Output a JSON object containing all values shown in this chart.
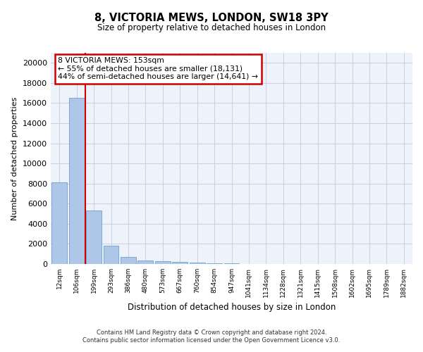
{
  "title1": "8, VICTORIA MEWS, LONDON, SW18 3PY",
  "title2": "Size of property relative to detached houses in London",
  "xlabel": "Distribution of detached houses by size in London",
  "ylabel": "Number of detached properties",
  "categories": [
    "12sqm",
    "106sqm",
    "199sqm",
    "293sqm",
    "386sqm",
    "480sqm",
    "573sqm",
    "667sqm",
    "760sqm",
    "854sqm",
    "947sqm",
    "1041sqm",
    "1134sqm",
    "1228sqm",
    "1321sqm",
    "1415sqm",
    "1508sqm",
    "1602sqm",
    "1695sqm",
    "1789sqm",
    "1882sqm"
  ],
  "values": [
    8100,
    16500,
    5300,
    1800,
    700,
    350,
    280,
    200,
    150,
    80,
    40,
    20,
    15,
    10,
    8,
    5,
    4,
    3,
    2,
    2,
    1
  ],
  "bar_color": "#aec6e8",
  "bar_edge_color": "#5a96c8",
  "grid_color": "#c8d0e0",
  "background_color": "#eef2fb",
  "red_line_x": 1.5,
  "annotation_text": "8 VICTORIA MEWS: 153sqm\n← 55% of detached houses are smaller (18,131)\n44% of semi-detached houses are larger (14,641) →",
  "annotation_box_color": "#ffffff",
  "annotation_border_color": "#cc0000",
  "footer1": "Contains HM Land Registry data © Crown copyright and database right 2024.",
  "footer2": "Contains public sector information licensed under the Open Government Licence v3.0.",
  "ylim": [
    0,
    21000
  ],
  "yticks": [
    0,
    2000,
    4000,
    6000,
    8000,
    10000,
    12000,
    14000,
    16000,
    18000,
    20000
  ]
}
